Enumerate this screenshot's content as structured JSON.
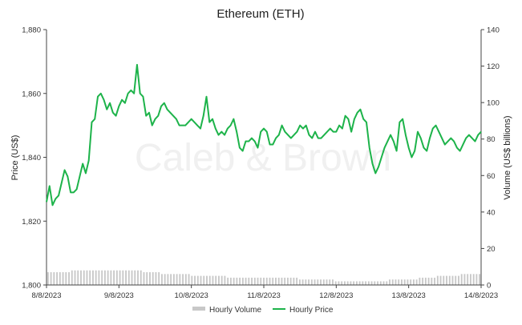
{
  "chart_data": {
    "type": "line",
    "title": "Ethereum (ETH)",
    "watermark": "Caleb & Brown",
    "x_tick_labels": [
      "8/8/2023",
      "9/8/2023",
      "10/8/2023",
      "11/8/2023",
      "12/8/2023",
      "13/8/2023",
      "14/8/2023"
    ],
    "x_range": [
      "2023-08-08T00:00",
      "2023-08-14T00:00"
    ],
    "y_left": {
      "label": "Price (US$)",
      "range": [
        1800,
        1880
      ],
      "tick_labels": [
        "1,800",
        "1,820",
        "1,840",
        "1,860",
        "1,880"
      ]
    },
    "y_right": {
      "label": "Volume (US$ billions)",
      "range": [
        0,
        140
      ],
      "tick_labels": [
        "0",
        "20",
        "40",
        "60",
        "80",
        "100",
        "120",
        "140"
      ]
    },
    "grid": false,
    "legend_position": "bottom",
    "colors": {
      "price": "#1db34a",
      "volume": "#c8c8c8"
    },
    "series": [
      {
        "name": "Hourly Price",
        "axis": "left",
        "x_hours_since_start": [
          0,
          1,
          2,
          3,
          4,
          5,
          6,
          7,
          8,
          9,
          10,
          11,
          12,
          13,
          14,
          15,
          16,
          17,
          18,
          19,
          20,
          21,
          22,
          23,
          24,
          25,
          26,
          27,
          28,
          29,
          30,
          31,
          32,
          33,
          34,
          35,
          36,
          37,
          38,
          39,
          40,
          41,
          42,
          43,
          44,
          45,
          46,
          47,
          48,
          49,
          50,
          51,
          52,
          53,
          54,
          55,
          56,
          57,
          58,
          59,
          60,
          61,
          62,
          63,
          64,
          65,
          66,
          67,
          68,
          69,
          70,
          71,
          72,
          73,
          74,
          75,
          76,
          77,
          78,
          79,
          80,
          81,
          82,
          83,
          84,
          85,
          86,
          87,
          88,
          89,
          90,
          91,
          92,
          93,
          94,
          95,
          96,
          97,
          98,
          99,
          100,
          101,
          102,
          103,
          104,
          105,
          106,
          107,
          108,
          109,
          110,
          111,
          112,
          113,
          114,
          115,
          116,
          117,
          118,
          119,
          120,
          121,
          122,
          123,
          124,
          125,
          126,
          127,
          128,
          129,
          130,
          131,
          132,
          133,
          134,
          135,
          136,
          137,
          138,
          139,
          140,
          141,
          142,
          143,
          144
        ],
        "values": [
          1826,
          1831,
          1825,
          1827,
          1828,
          1832,
          1836,
          1834,
          1829,
          1829,
          1830,
          1834,
          1838,
          1835,
          1839,
          1851,
          1852,
          1859,
          1860,
          1858,
          1855,
          1857,
          1854,
          1853,
          1856,
          1858,
          1857,
          1860,
          1861,
          1860,
          1869,
          1860,
          1859,
          1853,
          1854,
          1850,
          1852,
          1853,
          1856,
          1857,
          1855,
          1854,
          1853,
          1852,
          1850,
          1850,
          1850,
          1851,
          1852,
          1851,
          1850,
          1849,
          1853,
          1859,
          1851,
          1852,
          1849,
          1847,
          1848,
          1847,
          1849,
          1850,
          1852,
          1848,
          1843,
          1842,
          1845,
          1845,
          1846,
          1845,
          1843,
          1848,
          1849,
          1848,
          1844,
          1844,
          1846,
          1847,
          1850,
          1848,
          1847,
          1846,
          1847,
          1848,
          1850,
          1849,
          1850,
          1847,
          1846,
          1848,
          1846,
          1846,
          1847,
          1848,
          1849,
          1848,
          1848,
          1850,
          1849,
          1853,
          1852,
          1848,
          1852,
          1854,
          1855,
          1852,
          1851,
          1843,
          1838,
          1835,
          1837,
          1840,
          1843,
          1845,
          1847,
          1845,
          1842,
          1851,
          1852,
          1847,
          1843,
          1840,
          1842,
          1848,
          1846,
          1843,
          1842,
          1846,
          1849,
          1850,
          1848,
          1846,
          1844,
          1845,
          1846,
          1845,
          1843,
          1842,
          1844,
          1846,
          1847,
          1846,
          1845,
          1847,
          1848
        ],
        "values_override_note": ""
      },
      {
        "name": "Hourly Volume",
        "axis": "right",
        "values": [
          7,
          7,
          7,
          7,
          7,
          7,
          7,
          7,
          8,
          8,
          8,
          8,
          8,
          8,
          8,
          8,
          8,
          8,
          8,
          8,
          8,
          8,
          8,
          8,
          8,
          8,
          8,
          8,
          8,
          8,
          8,
          8,
          7,
          7,
          7,
          7,
          7,
          7,
          6,
          6,
          6,
          6,
          6,
          6,
          6,
          6,
          6,
          6,
          5,
          5,
          5,
          5,
          5,
          5,
          5,
          5,
          5,
          5,
          5,
          5,
          4,
          4,
          4,
          4,
          4,
          4,
          4,
          4,
          4,
          4,
          4,
          4,
          4,
          4,
          4,
          4,
          4,
          4,
          4,
          4,
          4,
          4,
          4,
          4,
          3,
          3,
          3,
          3,
          3,
          3,
          3,
          3,
          3,
          3,
          3,
          3,
          2,
          2,
          2,
          2,
          2,
          2,
          2,
          2,
          2,
          2,
          2,
          2,
          2,
          2,
          2,
          2,
          2,
          2,
          3,
          3,
          3,
          3,
          3,
          3,
          3,
          3,
          3,
          3,
          4,
          4,
          4,
          4,
          4,
          4,
          5,
          5,
          5,
          5,
          5,
          5,
          5,
          5,
          6,
          6,
          6,
          6,
          6,
          6,
          6
        ]
      }
    ]
  },
  "legend": {
    "volume_label": "Hourly Volume",
    "price_label": "Hourly Price"
  }
}
